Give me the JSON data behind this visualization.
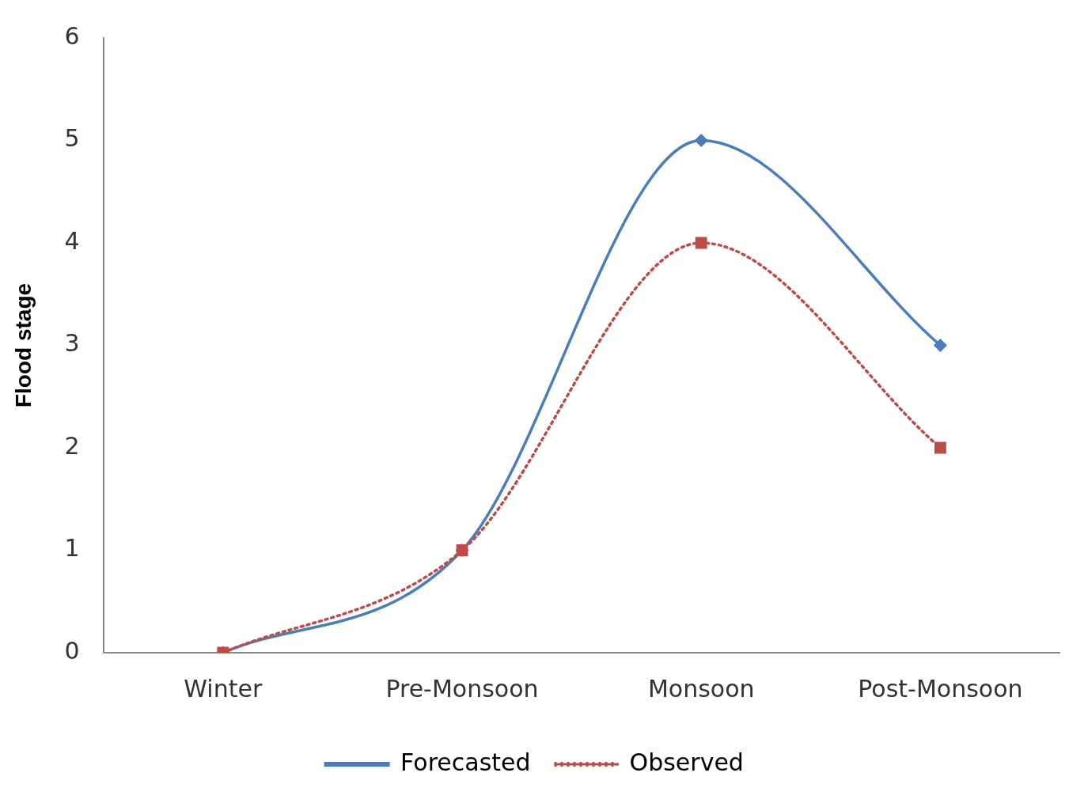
{
  "chart_data": {
    "type": "line",
    "ylabel": "Flood stage",
    "categories": [
      "Winter",
      "Pre-Monsoon",
      "Monsoon",
      "Post-Monsoon"
    ],
    "series": [
      {
        "name": "Forecasted",
        "color": "#4a7ebb",
        "values": [
          0,
          1,
          5,
          3
        ],
        "marker": "diamond",
        "line_style": "solid"
      },
      {
        "name": "Observed",
        "color": "#be4b48",
        "values": [
          0,
          1,
          4,
          2
        ],
        "marker": "square",
        "line_style": "dotted"
      }
    ],
    "ylim": [
      0,
      6
    ],
    "yticks": [
      0,
      1,
      2,
      3,
      4,
      5,
      6
    ],
    "grid": false,
    "legend": "bottom"
  }
}
